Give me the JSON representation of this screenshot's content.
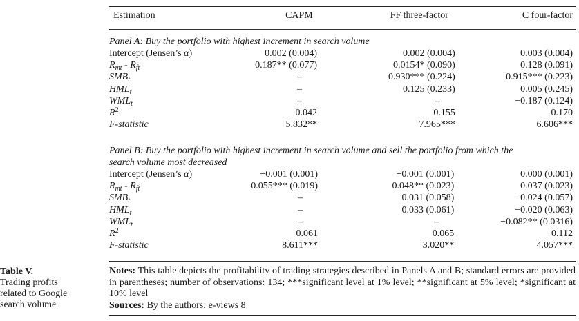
{
  "caption": {
    "number": "Table V.",
    "text": "Trading profits related to Google search volume"
  },
  "header": {
    "col0": "Estimation",
    "col1": "CAPM",
    "col2": "FF three-factor",
    "col3": "C four-factor"
  },
  "panel_a": {
    "title": "Panel A: Buy the portfolio with highest increment in search volume",
    "rows": [
      {
        "label": "Intercept (Jensen’s α)",
        "v1": "0.002 (0.004)",
        "v2": "0.002 (0.004)",
        "v3": "0.003 (0.004)"
      },
      {
        "label": "Rmt - Rft",
        "v1": "0.187** (0.077)",
        "v2": "0.0154* (0.090)",
        "v3": "0.128 (0.091)"
      },
      {
        "label": "SMBt",
        "v1": "–",
        "v2": "0.930*** (0.224)",
        "v3": "0.915*** (0.223)"
      },
      {
        "label": "HMLt",
        "v1": "–",
        "v2": "0.125 (0.233)",
        "v3": "0.005 (0.245)"
      },
      {
        "label": "WMLt",
        "v1": "–",
        "v2": "–",
        "v3": "−0.187 (0.124)"
      },
      {
        "label": "R2",
        "v1": "0.042",
        "v2": "0.155",
        "v3": "0.170"
      },
      {
        "label": "F-statistic",
        "v1": "5.832**",
        "v2": "7.965***",
        "v3": "6.606***"
      }
    ]
  },
  "panel_b": {
    "title_line1": "Panel B: Buy the portfolio with highest increment in search volume and sell the portfolio from which the",
    "title_line2": "search volume most decreased",
    "rows": [
      {
        "label": "Intercept (Jensen’s α)",
        "v1": "−0.001 (0.001)",
        "v2": "−0.001 (0.001)",
        "v3": "0.000 (0.001)"
      },
      {
        "label": "Rmt - Rft",
        "v1": "0.055*** (0.019)",
        "v2": "0.048** (0.023)",
        "v3": "0.037 (0.023)"
      },
      {
        "label": "SMBt",
        "v1": "–",
        "v2": "0.031 (0.058)",
        "v3": "−0.024 (0.057)"
      },
      {
        "label": "HMLt",
        "v1": "–",
        "v2": "0.033 (0.061)",
        "v3": "−0.020 (0.063)"
      },
      {
        "label": "WMLt",
        "v1": "–",
        "v2": "–",
        "v3": "−0.082** (0.0316)"
      },
      {
        "label": "R2",
        "v1": "0.061",
        "v2": "0.065",
        "v3": "0.112"
      },
      {
        "label": "F-statistic",
        "v1": "8.611***",
        "v2": "3.020**",
        "v3": "4.057***"
      }
    ]
  },
  "notes": {
    "notes_label": "Notes:",
    "notes_text": "This table depicts the profitability of trading strategies described in Panels A and B; standard errors are provided in parentheses; number of observations: 134; ***significant level at 1% level; **significant at 5% level; *significant at 10% level",
    "sources_label": "Sources:",
    "sources_text": "By the authors; e-views 8"
  }
}
